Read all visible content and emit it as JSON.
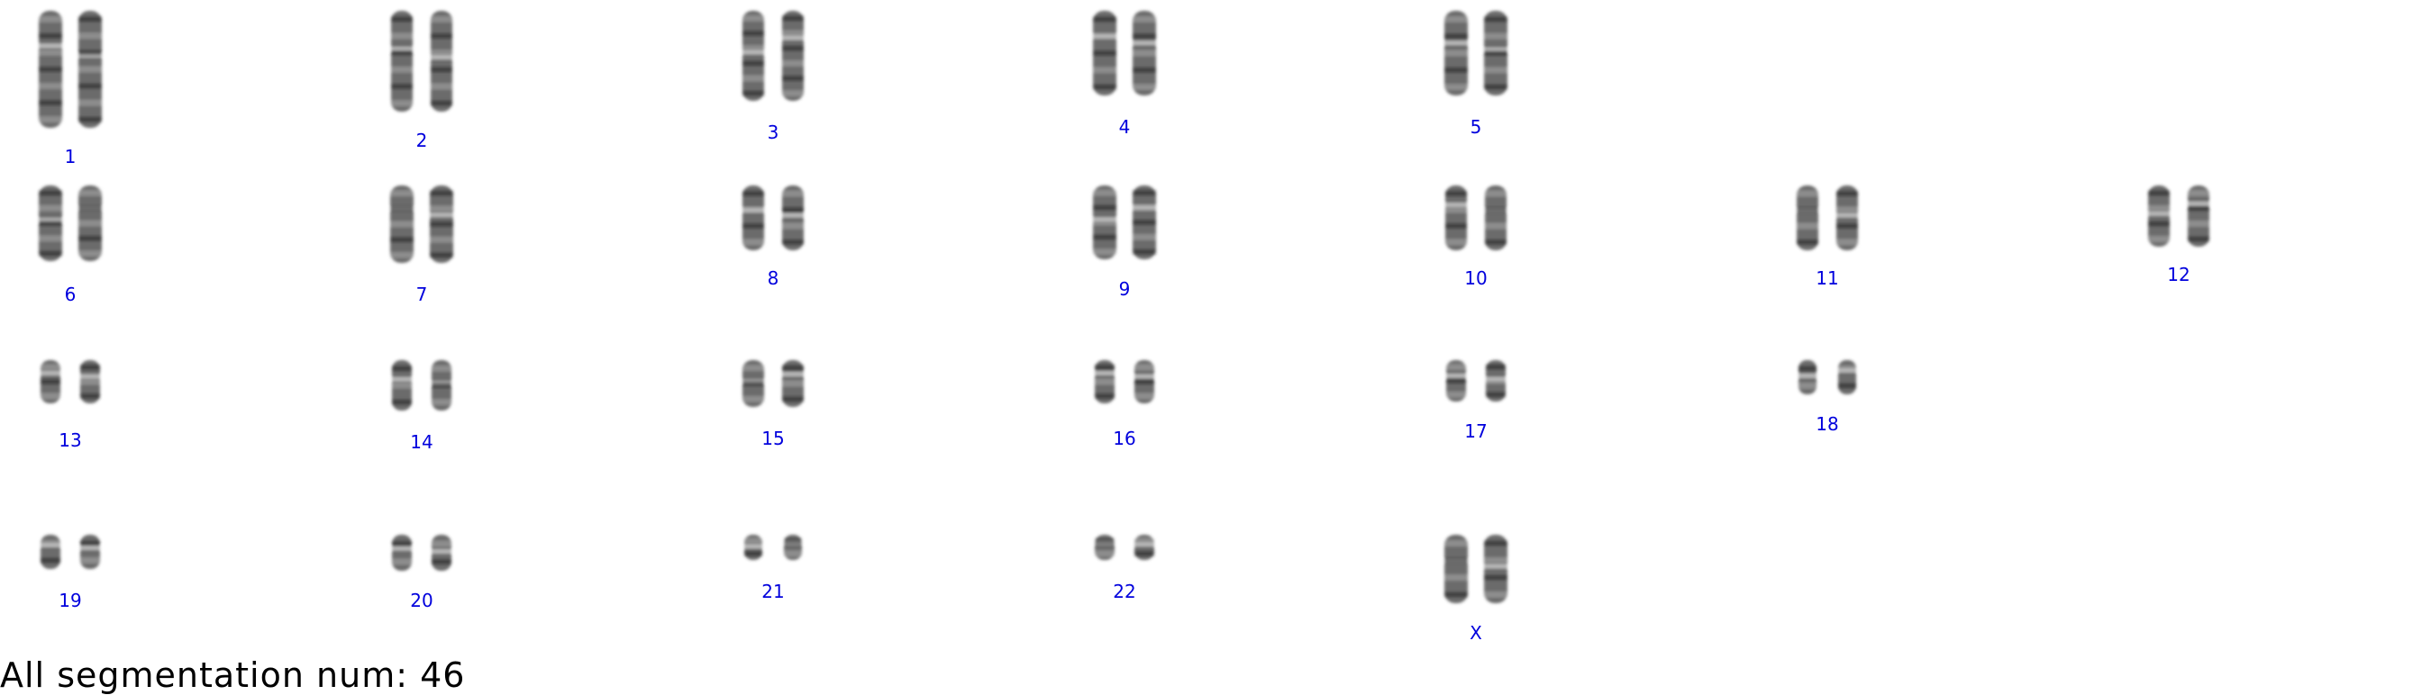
{
  "karyotype": {
    "chromosome_color": "#3a3a3a",
    "label_color": "#0000dd",
    "pairs": [
      {
        "label": "1"
      },
      {
        "label": "2"
      },
      {
        "label": "3"
      },
      {
        "label": "4"
      },
      {
        "label": "5"
      },
      {
        "label": "6"
      },
      {
        "label": "7"
      },
      {
        "label": "8"
      },
      {
        "label": "9"
      },
      {
        "label": "10"
      },
      {
        "label": "11"
      },
      {
        "label": "12"
      },
      {
        "label": "13"
      },
      {
        "label": "14"
      },
      {
        "label": "15"
      },
      {
        "label": "16"
      },
      {
        "label": "17"
      },
      {
        "label": "18"
      },
      {
        "label": "19"
      },
      {
        "label": "20"
      },
      {
        "label": "21"
      },
      {
        "label": "22"
      },
      {
        "label": "X"
      }
    ]
  },
  "footer": {
    "text": "All segmentation num: 46"
  }
}
